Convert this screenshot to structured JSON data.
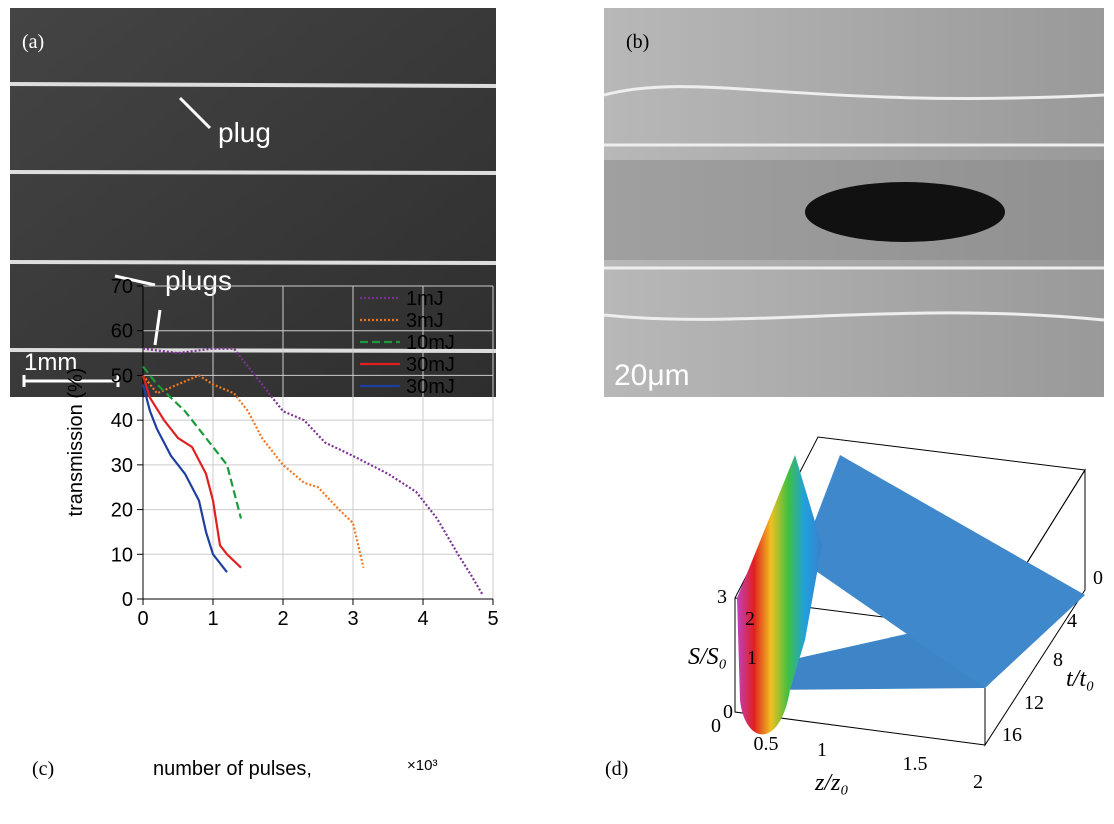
{
  "panel_a": {
    "label": "(a)",
    "plug": "plug",
    "plugs": "plugs",
    "scale": "1mm"
  },
  "panel_b": {
    "label": "(b)",
    "scale": "20μm"
  },
  "chart_data": {
    "type": "line",
    "panel_label": "(c)",
    "x_label": "number of pulses,",
    "x_scale_label": "×10³",
    "y_label": "transmission (%)",
    "xlim": [
      0,
      5
    ],
    "ylim": [
      0,
      70
    ],
    "xticks": [
      0,
      1,
      2,
      3,
      4,
      5
    ],
    "yticks": [
      0,
      10,
      20,
      30,
      40,
      50,
      60,
      70
    ],
    "grid": true,
    "legend": "top-right",
    "series": [
      {
        "name": "1mJ",
        "color": "#7b3294",
        "dash": "dotted",
        "x": [
          0,
          0.5,
          1.0,
          1.3,
          1.6,
          2.0,
          2.3,
          2.6,
          3.0,
          3.5,
          3.9,
          4.2,
          4.5,
          4.7,
          4.85
        ],
        "values": [
          56,
          55,
          56,
          56,
          50,
          42,
          40,
          35,
          32,
          28,
          24,
          18,
          10,
          5,
          1
        ]
      },
      {
        "name": "3mJ",
        "color": "#f07820",
        "dash": "dotted",
        "x": [
          0,
          0.2,
          0.5,
          0.8,
          1.0,
          1.3,
          1.5,
          1.7,
          2.0,
          2.3,
          2.5,
          2.8,
          3.0,
          3.15
        ],
        "values": [
          50,
          46,
          48,
          50,
          48,
          46,
          42,
          36,
          30,
          26,
          25,
          20,
          17,
          7
        ]
      },
      {
        "name": "10mJ",
        "color": "#1a9a3a",
        "dash": "dashed",
        "x": [
          0,
          0.2,
          0.4,
          0.6,
          0.8,
          1.0,
          1.2,
          1.4
        ],
        "values": [
          52,
          48,
          45,
          42,
          38,
          34,
          30,
          18
        ]
      },
      {
        "name": "30mJ",
        "color": "#e02020",
        "dash": "solid",
        "x": [
          0,
          0.1,
          0.3,
          0.5,
          0.7,
          0.9,
          1.0,
          1.1,
          1.2,
          1.4
        ],
        "values": [
          50,
          45,
          40,
          36,
          34,
          28,
          22,
          12,
          10,
          7
        ]
      },
      {
        "name": "30mJ",
        "color": "#1f3fa0",
        "dash": "solid",
        "x": [
          0,
          0.1,
          0.2,
          0.4,
          0.6,
          0.8,
          0.9,
          1.0,
          1.2
        ],
        "values": [
          48,
          42,
          38,
          32,
          28,
          22,
          15,
          10,
          6
        ]
      }
    ]
  },
  "panel_d": {
    "label": "(d)",
    "s_axis": "S/S₀",
    "s_ticks": [
      "0",
      "1",
      "2",
      "3"
    ],
    "z_axis": "z/z₀",
    "z_ticks": [
      "0",
      "0.5",
      "1",
      "1.5",
      "2"
    ],
    "t_axis": "t/t₀",
    "t_ticks": [
      "0",
      "4",
      "8",
      "12",
      "16"
    ]
  }
}
